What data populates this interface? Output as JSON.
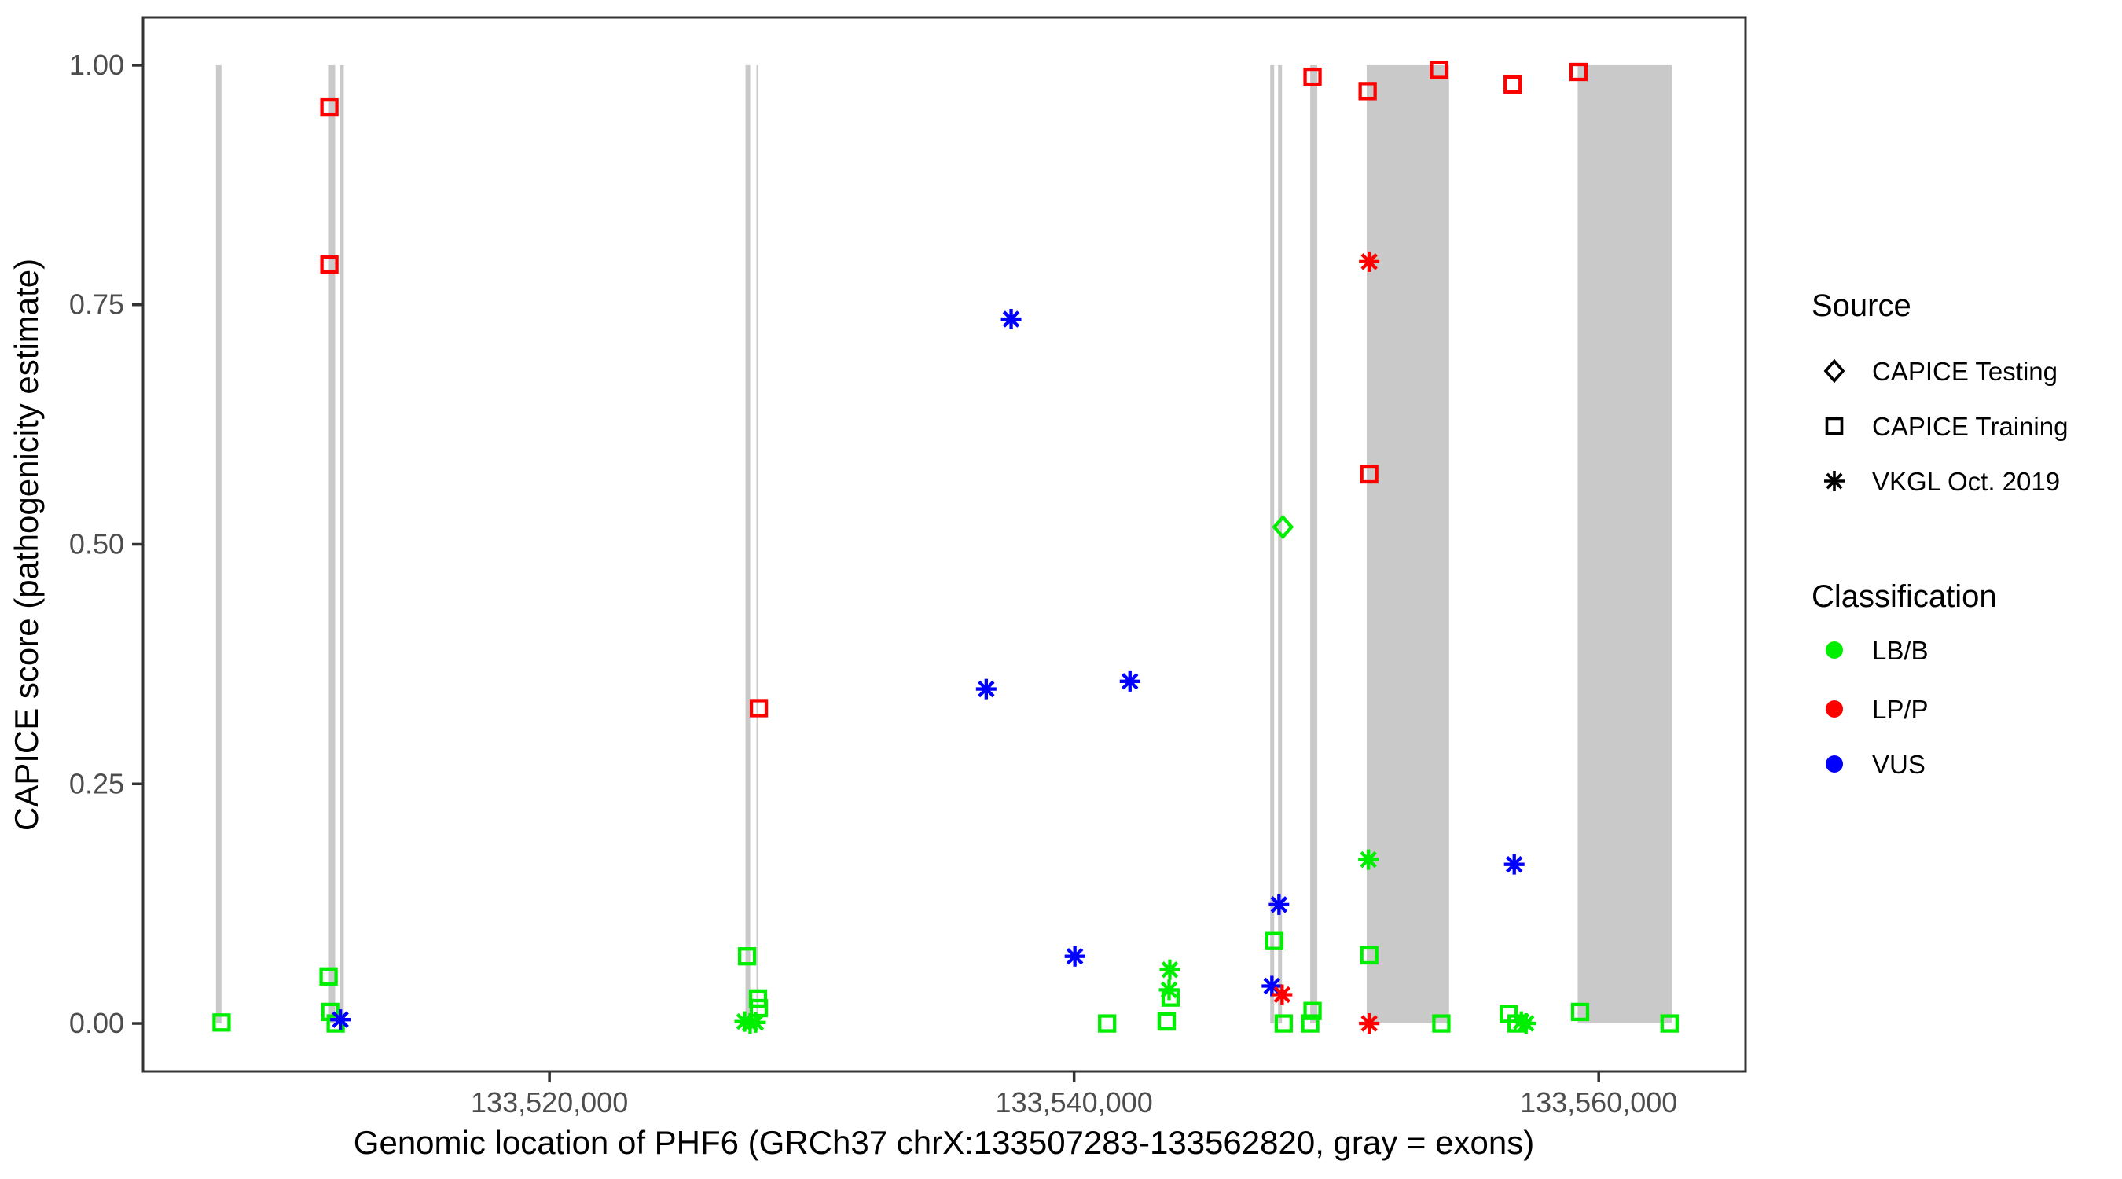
{
  "legend": {
    "source": {
      "title": "Source",
      "items": [
        {
          "label": "CAPICE Testing",
          "shape": "diamond"
        },
        {
          "label": "CAPICE Training",
          "shape": "square"
        },
        {
          "label": "VKGL Oct. 2019",
          "shape": "asterisk"
        }
      ]
    },
    "classification": {
      "title": "Classification",
      "items": [
        {
          "label": "LB/B",
          "color": "#00EE00"
        },
        {
          "label": "LP/P",
          "color": "#FF0000"
        },
        {
          "label": "VUS",
          "color": "#0000FF"
        }
      ]
    }
  },
  "colors": {
    "exon": "#C9C9C9",
    "panel_border": "#333333",
    "tick": "#333333",
    "classification": {
      "LB/B": "#00EE00",
      "LP/P": "#FF0000",
      "VUS": "#0000FF"
    },
    "legend_symbol": "#000000"
  },
  "chart_data": {
    "type": "scatter",
    "xlabel": "Genomic location of PHF6 (GRCh37 chrX:133507283-133562820, gray = exons)",
    "ylabel": "CAPICE score (pathogenicity estimate)",
    "x_domain": [
      133504506,
      133565597
    ],
    "y_domain": [
      -0.05,
      1.05
    ],
    "x_ticks": [
      {
        "label": "133,520,000",
        "value": 133520000
      },
      {
        "label": "133,540,000",
        "value": 133540000
      },
      {
        "label": "133,560,000",
        "value": 133560000
      }
    ],
    "y_ticks": [
      {
        "label": "1.00",
        "value": 1.0
      },
      {
        "label": "0.75",
        "value": 0.75
      },
      {
        "label": "0.50",
        "value": 0.5
      },
      {
        "label": "0.25",
        "value": 0.25
      },
      {
        "label": "0.00",
        "value": 0.0
      }
    ],
    "shape_by_source": {
      "testing": "diamond",
      "training": "square",
      "vkgl": "asterisk"
    },
    "source_names": {
      "testing": "CAPICE Testing",
      "training": "CAPICE Training",
      "vkgl": "VKGL Oct. 2019"
    },
    "exons": [
      [
        133507286,
        133507495
      ],
      [
        133511561,
        133511830
      ],
      [
        133512009,
        133512159
      ],
      [
        133527474,
        133527653
      ],
      [
        133527892,
        133527952
      ],
      [
        133547477,
        133547627
      ],
      [
        133547776,
        133547926
      ],
      [
        133549002,
        133549271
      ],
      [
        133551155,
        133554295
      ],
      [
        133559198,
        133562786
      ]
    ],
    "points": [
      {
        "pos": 133507500,
        "score": 0.001,
        "source": "training",
        "classification": "LB/B"
      },
      {
        "pos": 133511610,
        "score": 0.956,
        "source": "training",
        "classification": "LP/P"
      },
      {
        "pos": 133511610,
        "score": 0.792,
        "source": "training",
        "classification": "LP/P"
      },
      {
        "pos": 133511580,
        "score": 0.049,
        "source": "training",
        "classification": "LB/B"
      },
      {
        "pos": 133511640,
        "score": 0.012,
        "source": "training",
        "classification": "LB/B"
      },
      {
        "pos": 133511850,
        "score": 0.0,
        "source": "training",
        "classification": "LB/B"
      },
      {
        "pos": 133512030,
        "score": 0.004,
        "source": "vkgl",
        "classification": "VUS"
      },
      {
        "pos": 133527983,
        "score": 0.329,
        "source": "training",
        "classification": "LP/P"
      },
      {
        "pos": 133527535,
        "score": 0.07,
        "source": "training",
        "classification": "LB/B"
      },
      {
        "pos": 133527950,
        "score": 0.026,
        "source": "training",
        "classification": "LB/B"
      },
      {
        "pos": 133527980,
        "score": 0.016,
        "source": "training",
        "classification": "LB/B"
      },
      {
        "pos": 133527440,
        "score": 0.002,
        "source": "vkgl",
        "classification": "LB/B"
      },
      {
        "pos": 133527650,
        "score": 0.0,
        "source": "vkgl",
        "classification": "LB/B"
      },
      {
        "pos": 133527860,
        "score": 0.001,
        "source": "vkgl",
        "classification": "LB/B"
      },
      {
        "pos": 133536650,
        "score": 0.349,
        "source": "vkgl",
        "classification": "VUS"
      },
      {
        "pos": 133537600,
        "score": 0.735,
        "source": "vkgl",
        "classification": "VUS"
      },
      {
        "pos": 133542130,
        "score": 0.357,
        "source": "vkgl",
        "classification": "VUS"
      },
      {
        "pos": 133540030,
        "score": 0.07,
        "source": "vkgl",
        "classification": "VUS"
      },
      {
        "pos": 133541260,
        "score": 0.0,
        "source": "training",
        "classification": "LB/B"
      },
      {
        "pos": 133543650,
        "score": 0.056,
        "source": "vkgl",
        "classification": "LB/B"
      },
      {
        "pos": 133543620,
        "score": 0.035,
        "source": "vkgl",
        "classification": "LB/B"
      },
      {
        "pos": 133543680,
        "score": 0.027,
        "source": "training",
        "classification": "LB/B"
      },
      {
        "pos": 133543530,
        "score": 0.002,
        "source": "training",
        "classification": "LB/B"
      },
      {
        "pos": 133547810,
        "score": 0.124,
        "source": "vkgl",
        "classification": "VUS"
      },
      {
        "pos": 133547630,
        "score": 0.086,
        "source": "training",
        "classification": "LB/B"
      },
      {
        "pos": 133547540,
        "score": 0.039,
        "source": "vkgl",
        "classification": "VUS"
      },
      {
        "pos": 133547930,
        "score": 0.03,
        "source": "vkgl",
        "classification": "LP/P"
      },
      {
        "pos": 133547990,
        "score": 0.0,
        "source": "training",
        "classification": "LB/B"
      },
      {
        "pos": 133547960,
        "score": 0.518,
        "source": "testing",
        "classification": "LB/B"
      },
      {
        "pos": 133549090,
        "score": 0.013,
        "source": "training",
        "classification": "LB/B"
      },
      {
        "pos": 133549000,
        "score": 0.0,
        "source": "training",
        "classification": "LB/B"
      },
      {
        "pos": 133549090,
        "score": 0.988,
        "source": "training",
        "classification": "LP/P"
      },
      {
        "pos": 133551190,
        "score": 0.973,
        "source": "training",
        "classification": "LP/P"
      },
      {
        "pos": 133551250,
        "score": 0.795,
        "source": "vkgl",
        "classification": "LP/P"
      },
      {
        "pos": 133551250,
        "score": 0.573,
        "source": "training",
        "classification": "LP/P"
      },
      {
        "pos": 133551220,
        "score": 0.171,
        "source": "vkgl",
        "classification": "LB/B"
      },
      {
        "pos": 133551250,
        "score": 0.071,
        "source": "training",
        "classification": "LB/B"
      },
      {
        "pos": 133551250,
        "score": 0.0,
        "source": "vkgl",
        "classification": "LP/P"
      },
      {
        "pos": 133553910,
        "score": 0.995,
        "source": "training",
        "classification": "LP/P"
      },
      {
        "pos": 133554000,
        "score": 0.0,
        "source": "training",
        "classification": "LB/B"
      },
      {
        "pos": 133556570,
        "score": 0.01,
        "source": "training",
        "classification": "LB/B"
      },
      {
        "pos": 133556870,
        "score": 0.0,
        "source": "training",
        "classification": "LB/B"
      },
      {
        "pos": 133557050,
        "score": 0.002,
        "source": "vkgl",
        "classification": "LB/B"
      },
      {
        "pos": 133557230,
        "score": 0.0,
        "source": "vkgl",
        "classification": "LB/B"
      },
      {
        "pos": 133556720,
        "score": 0.98,
        "source": "training",
        "classification": "LP/P"
      },
      {
        "pos": 133556780,
        "score": 0.166,
        "source": "vkgl",
        "classification": "VUS"
      },
      {
        "pos": 133559230,
        "score": 0.993,
        "source": "training",
        "classification": "LP/P"
      },
      {
        "pos": 133559290,
        "score": 0.012,
        "source": "training",
        "classification": "LB/B"
      },
      {
        "pos": 133562700,
        "score": 0.0,
        "source": "training",
        "classification": "LB/B"
      }
    ]
  }
}
